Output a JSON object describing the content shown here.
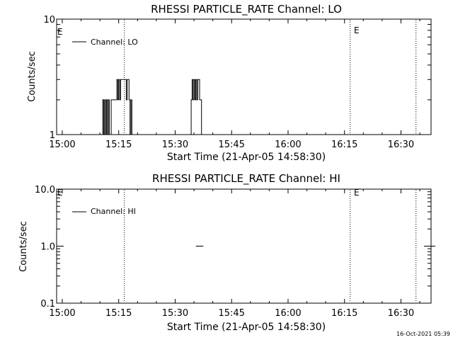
{
  "footer": {
    "timestamp": "16-Oct-2021 05:39"
  },
  "chart_data": [
    {
      "type": "line",
      "title": "RHESSI PARTICLE_RATE Channel: LO",
      "xlabel": "Start Time (21-Apr-05 14:58:30)",
      "ylabel": "Counts/sec",
      "x_ticks": [
        "15:00",
        "15:15",
        "15:30",
        "15:45",
        "16:00",
        "16:15",
        "16:30"
      ],
      "y_ticks": [
        "1",
        "10"
      ],
      "y_scale": "log",
      "ylim": [
        1,
        10
      ],
      "xlim": [
        "14:58:30",
        "16:38:00"
      ],
      "legend": {
        "label": "Channel: LO",
        "placement": "top-left"
      },
      "markers": [
        {
          "time": "15:16:30",
          "label": ""
        },
        {
          "time": "16:16:30",
          "label": "E"
        },
        {
          "time": "16:34:00",
          "label": ""
        }
      ],
      "edge_marker": "E",
      "series": [
        {
          "values": [
            [
              "15:10:30",
              1
            ],
            [
              "15:10:45",
              2
            ],
            [
              "15:11:00",
              1
            ],
            [
              "15:11:15",
              2
            ],
            [
              "15:11:30",
              1
            ],
            [
              "15:11:45",
              2
            ],
            [
              "15:12:00",
              1
            ],
            [
              "15:12:15",
              2
            ],
            [
              "15:12:30",
              1
            ],
            [
              "15:13:00",
              2
            ],
            [
              "15:14:00",
              2
            ],
            [
              "15:14:30",
              3
            ],
            [
              "15:14:45",
              2
            ],
            [
              "15:15:00",
              3
            ],
            [
              "15:15:15",
              2
            ],
            [
              "15:15:30",
              3
            ],
            [
              "15:16:30",
              3
            ],
            [
              "15:17:00",
              2
            ],
            [
              "15:17:15",
              3
            ],
            [
              "15:17:45",
              2
            ],
            [
              "15:18:00",
              1
            ],
            [
              "15:18:15",
              2
            ],
            [
              "15:18:30",
              1
            ],
            [
              "15:34:00",
              1
            ],
            [
              "15:34:15",
              2
            ],
            [
              "15:34:30",
              3
            ],
            [
              "15:34:45",
              2
            ],
            [
              "15:35:00",
              3
            ],
            [
              "15:35:15",
              2
            ],
            [
              "15:35:30",
              3
            ],
            [
              "15:35:45",
              2
            ],
            [
              "15:36:00",
              3
            ],
            [
              "15:36:30",
              2
            ],
            [
              "15:37:00",
              1
            ]
          ]
        }
      ]
    },
    {
      "type": "line",
      "title": "RHESSI PARTICLE_RATE Channel: HI",
      "xlabel": "Start Time (21-Apr-05 14:58:30)",
      "ylabel": "Counts/sec",
      "x_ticks": [
        "15:00",
        "15:15",
        "15:30",
        "15:45",
        "16:00",
        "16:15",
        "16:30"
      ],
      "y_ticks": [
        "0.1",
        "1.0",
        "10.0"
      ],
      "y_scale": "log",
      "ylim": [
        0.1,
        10
      ],
      "xlim": [
        "14:58:30",
        "16:38:00"
      ],
      "legend": {
        "label": "Channel: HI",
        "placement": "top-left"
      },
      "markers": [
        {
          "time": "15:16:30",
          "label": ""
        },
        {
          "time": "16:16:30",
          "label": "E"
        },
        {
          "time": "16:34:00",
          "label": ""
        }
      ],
      "edge_marker": "E",
      "series": [
        {
          "values": [
            [
              "15:35:30",
              1
            ],
            [
              "15:37:30",
              1
            ]
          ]
        }
      ]
    }
  ]
}
